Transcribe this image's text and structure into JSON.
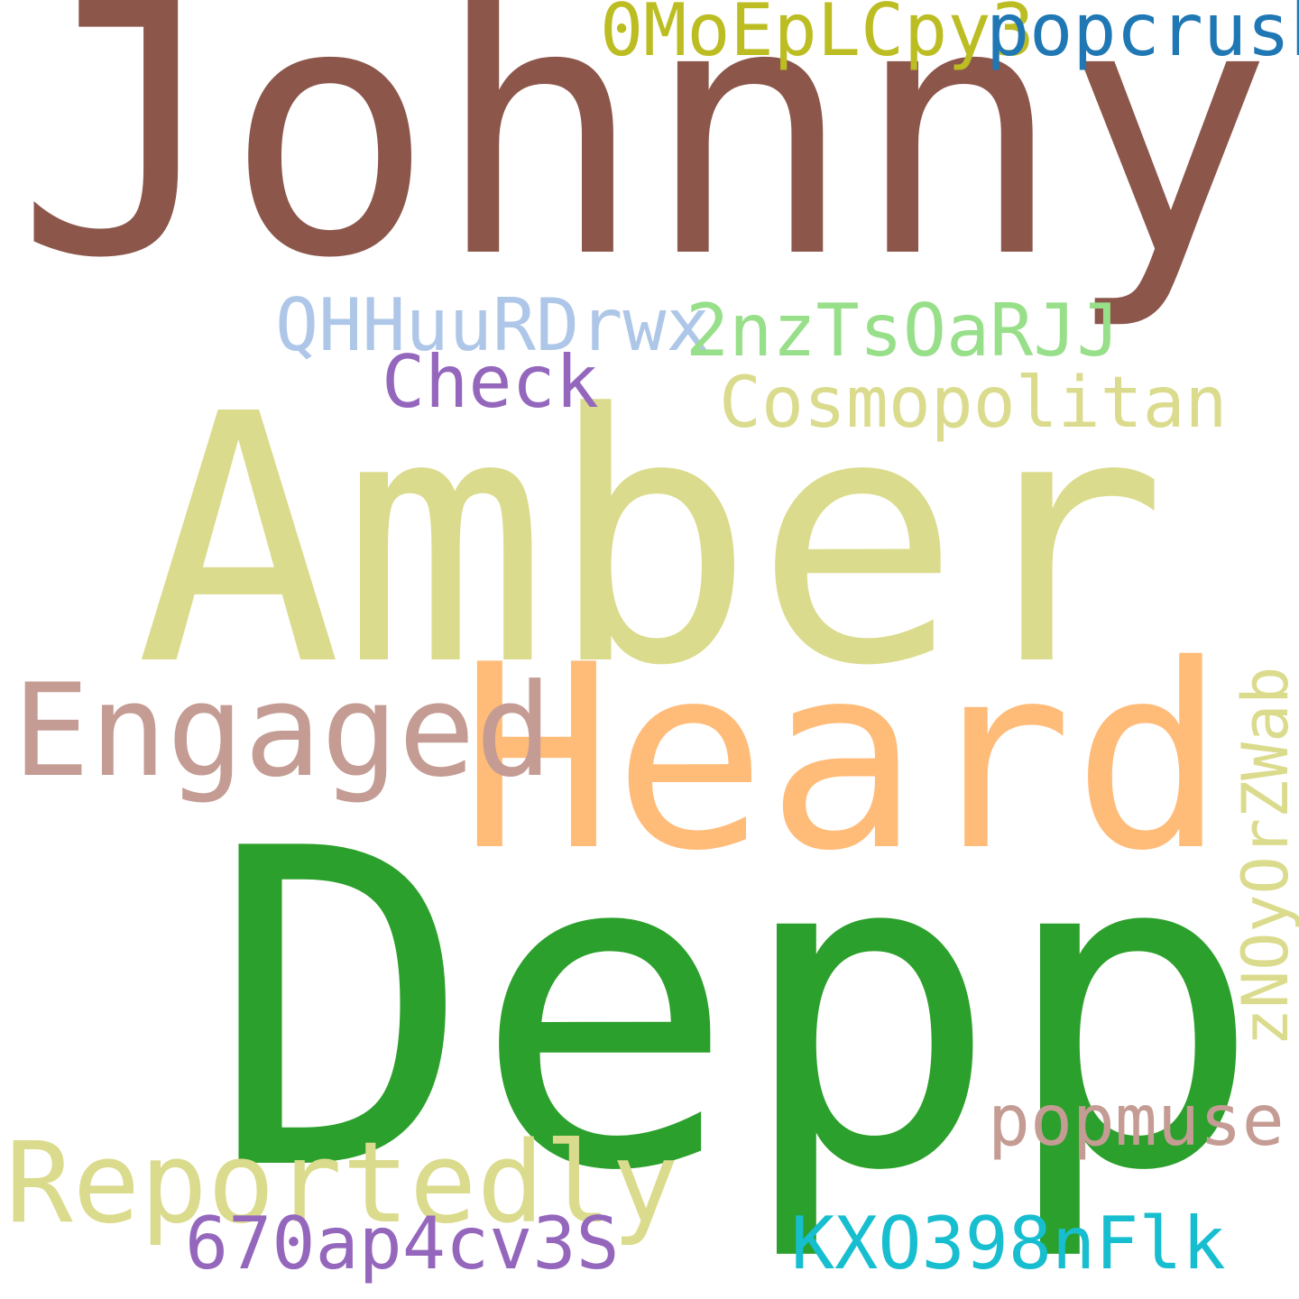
{
  "words": [
    {
      "text": "Johnny",
      "color": "#8c564b"
    },
    {
      "text": "Amber",
      "color": "#dbdb8d"
    },
    {
      "text": "Heard",
      "color": "#ffbb78"
    },
    {
      "text": "Depp",
      "color": "#2ca02c"
    },
    {
      "text": "Engaged",
      "color": "#c49c94"
    },
    {
      "text": "Reportedly",
      "color": "#dbdb8d"
    },
    {
      "text": "0MoEpLCpy3",
      "color": "#bcbd22"
    },
    {
      "text": "popcrush",
      "color": "#1f77b4"
    },
    {
      "text": "QHHuuRDrwx",
      "color": "#aec7e8"
    },
    {
      "text": "2nzTsOaRJJ",
      "color": "#98df8a"
    },
    {
      "text": "Check",
      "color": "#9467bd"
    },
    {
      "text": "Cosmopolitan",
      "color": "#dbdb8d"
    },
    {
      "text": "popmuse",
      "color": "#c49c94"
    },
    {
      "text": "670ap4cv3S",
      "color": "#9467bd"
    },
    {
      "text": "KXO398nFlk",
      "color": "#17becf"
    },
    {
      "text": "zNOyOrZWab",
      "color": "#dbdb8d",
      "orientation": "vertical"
    }
  ]
}
